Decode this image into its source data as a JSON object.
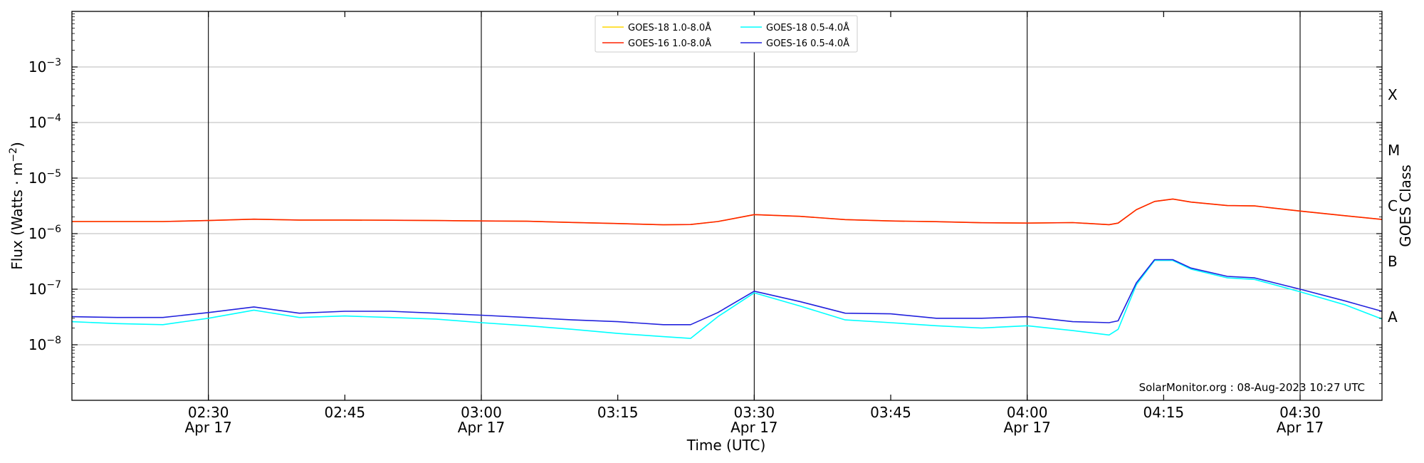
{
  "chart_data": {
    "type": "line",
    "title": "",
    "xlabel": "Time (UTC)",
    "ylabel": "Flux (Watts · m",
    "ylabel_sup": "−2",
    "ylabel_close": ")",
    "y2label": "GOES Class",
    "yscale": "log",
    "ylim": [
      1e-09,
      0.01
    ],
    "xlim": [
      "2023-04-17 02:15",
      "2023-04-17 04:39"
    ],
    "grid": "horizontal",
    "legend_position": "top-center",
    "x_ticks": [
      {
        "time": "2023-04-17 02:30",
        "line1": "02:30",
        "line2": "Apr 17",
        "vline": true
      },
      {
        "time": "2023-04-17 02:45",
        "line1": "02:45",
        "line2": "",
        "vline": false
      },
      {
        "time": "2023-04-17 03:00",
        "line1": "03:00",
        "line2": "Apr 17",
        "vline": true
      },
      {
        "time": "2023-04-17 03:15",
        "line1": "03:15",
        "line2": "",
        "vline": false
      },
      {
        "time": "2023-04-17 03:30",
        "line1": "03:30",
        "line2": "Apr 17",
        "vline": true
      },
      {
        "time": "2023-04-17 03:45",
        "line1": "03:45",
        "line2": "",
        "vline": false
      },
      {
        "time": "2023-04-17 04:00",
        "line1": "04:00",
        "line2": "Apr 17",
        "vline": true
      },
      {
        "time": "2023-04-17 04:15",
        "line1": "04:15",
        "line2": "",
        "vline": false
      },
      {
        "time": "2023-04-17 04:30",
        "line1": "04:30",
        "line2": "Apr 17",
        "vline": true
      }
    ],
    "y_ticks": [
      {
        "value": 1e-08,
        "base": "10",
        "exp": "−8"
      },
      {
        "value": 1e-07,
        "base": "10",
        "exp": "−7"
      },
      {
        "value": 1e-06,
        "base": "10",
        "exp": "−6"
      },
      {
        "value": 1e-05,
        "base": "10",
        "exp": "−5"
      },
      {
        "value": 0.0001,
        "base": "10",
        "exp": "−4"
      },
      {
        "value": 0.001,
        "base": "10",
        "exp": "−3"
      }
    ],
    "goes_classes": [
      {
        "label": "A",
        "value": 3.16e-08
      },
      {
        "label": "B",
        "value": 3.16e-07
      },
      {
        "label": "C",
        "value": 3.16e-06
      },
      {
        "label": "M",
        "value": 3.16e-05
      },
      {
        "label": "X",
        "value": 0.000316
      }
    ],
    "x": [
      "2023-04-17 02:15",
      "2023-04-17 02:20",
      "2023-04-17 02:25",
      "2023-04-17 02:30",
      "2023-04-17 02:35",
      "2023-04-17 02:40",
      "2023-04-17 02:45",
      "2023-04-17 02:50",
      "2023-04-17 02:55",
      "2023-04-17 03:00",
      "2023-04-17 03:05",
      "2023-04-17 03:10",
      "2023-04-17 03:15",
      "2023-04-17 03:20",
      "2023-04-17 03:23",
      "2023-04-17 03:26",
      "2023-04-17 03:30",
      "2023-04-17 03:35",
      "2023-04-17 03:40",
      "2023-04-17 03:45",
      "2023-04-17 03:50",
      "2023-04-17 03:55",
      "2023-04-17 04:00",
      "2023-04-17 04:05",
      "2023-04-17 04:09",
      "2023-04-17 04:10",
      "2023-04-17 04:12",
      "2023-04-17 04:14",
      "2023-04-17 04:16",
      "2023-04-17 04:18",
      "2023-04-17 04:22",
      "2023-04-17 04:25",
      "2023-04-17 04:30",
      "2023-04-17 04:35",
      "2023-04-17 04:39"
    ],
    "series": [
      {
        "name": "GOES-18 1.0-8.0Å",
        "color": "#ffd700",
        "values": [
          1.65e-06,
          1.65e-06,
          1.65e-06,
          1.72e-06,
          1.82e-06,
          1.76e-06,
          1.76e-06,
          1.74e-06,
          1.72e-06,
          1.69e-06,
          1.67e-06,
          1.59e-06,
          1.52e-06,
          1.44e-06,
          1.46e-06,
          1.65e-06,
          2.2e-06,
          2.05e-06,
          1.79e-06,
          1.69e-06,
          1.64e-06,
          1.57e-06,
          1.55e-06,
          1.58e-06,
          1.45e-06,
          1.55e-06,
          2.7e-06,
          3.8e-06,
          4.2e-06,
          3.7e-06,
          3.2e-06,
          3.15e-06,
          2.55e-06,
          2.1e-06,
          1.8e-06
        ]
      },
      {
        "name": "GOES-16 1.0-8.0Å",
        "color": "#ff2200",
        "values": [
          1.65e-06,
          1.65e-06,
          1.65e-06,
          1.72e-06,
          1.82e-06,
          1.76e-06,
          1.76e-06,
          1.74e-06,
          1.72e-06,
          1.69e-06,
          1.67e-06,
          1.59e-06,
          1.52e-06,
          1.44e-06,
          1.46e-06,
          1.65e-06,
          2.2e-06,
          2.05e-06,
          1.79e-06,
          1.69e-06,
          1.64e-06,
          1.57e-06,
          1.55e-06,
          1.58e-06,
          1.45e-06,
          1.55e-06,
          2.7e-06,
          3.8e-06,
          4.2e-06,
          3.7e-06,
          3.2e-06,
          3.15e-06,
          2.55e-06,
          2.1e-06,
          1.8e-06
        ]
      },
      {
        "name": "GOES-18 0.5-4.0Å",
        "color": "#00ffff",
        "values": [
          2.6e-08,
          2.4e-08,
          2.3e-08,
          3e-08,
          4.2e-08,
          3.1e-08,
          3.3e-08,
          3.1e-08,
          2.9e-08,
          2.5e-08,
          2.2e-08,
          1.9e-08,
          1.6e-08,
          1.4e-08,
          1.3e-08,
          3.2e-08,
          8.6e-08,
          5e-08,
          2.8e-08,
          2.5e-08,
          2.2e-08,
          2e-08,
          2.2e-08,
          1.8e-08,
          1.5e-08,
          1.9e-08,
          1.2e-07,
          3.3e-07,
          3.3e-07,
          2.3e-07,
          1.6e-07,
          1.5e-07,
          9e-08,
          5.2e-08,
          2.9e-08
        ]
      },
      {
        "name": "GOES-16 0.5-4.0Å",
        "color": "#2222dd",
        "values": [
          3.2e-08,
          3.1e-08,
          3.1e-08,
          3.8e-08,
          4.8e-08,
          3.7e-08,
          4e-08,
          4e-08,
          3.7e-08,
          3.4e-08,
          3.1e-08,
          2.8e-08,
          2.6e-08,
          2.3e-08,
          2.3e-08,
          3.8e-08,
          9.2e-08,
          6e-08,
          3.7e-08,
          3.6e-08,
          3e-08,
          3e-08,
          3.2e-08,
          2.6e-08,
          2.5e-08,
          2.7e-08,
          1.3e-07,
          3.4e-07,
          3.4e-07,
          2.4e-07,
          1.7e-07,
          1.6e-07,
          1e-07,
          6.1e-08,
          4e-08
        ]
      }
    ],
    "credit": "SolarMonitor.org : 08-Aug-2023 10:27 UTC"
  }
}
